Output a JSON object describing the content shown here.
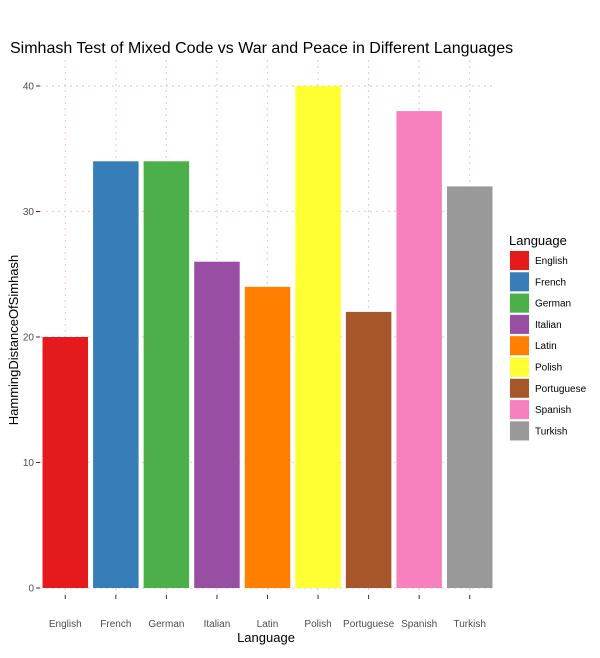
{
  "chart_data": {
    "type": "bar",
    "title": "Simhash Test of Mixed Code vs War and Peace in Different Languages",
    "xlabel": "Language",
    "ylabel": "HammingDistanceOfSimhash",
    "categories": [
      "English",
      "French",
      "German",
      "Italian",
      "Latin",
      "Polish",
      "Portuguese",
      "Spanish",
      "Turkish"
    ],
    "values": [
      20,
      34,
      34,
      26,
      24,
      40,
      22,
      38,
      32
    ],
    "colors": [
      "#e41a1c",
      "#377eb8",
      "#4daf4a",
      "#984ea3",
      "#ff7f00",
      "#ffff33",
      "#a65628",
      "#f781bf",
      "#999999"
    ],
    "ylim": [
      0,
      40
    ],
    "yticks": [
      0,
      10,
      20,
      30,
      40
    ],
    "grid": true,
    "legend": {
      "title": "Language",
      "placement": "right",
      "items": [
        "English",
        "French",
        "German",
        "Italian",
        "Latin",
        "Polish",
        "Portuguese",
        "Spanish",
        "Turkish"
      ]
    }
  }
}
